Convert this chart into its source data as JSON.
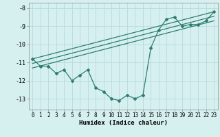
{
  "xlabel": "Humidex (Indice chaleur)",
  "bg_color": "#d6f0f0",
  "line_color": "#2e7d6e",
  "grid_color": "#b8dada",
  "xlim": [
    -0.5,
    23.5
  ],
  "ylim": [
    -13.6,
    -7.7
  ],
  "yticks": [
    -8,
    -9,
    -10,
    -11,
    -12,
    -13
  ],
  "xticks": [
    0,
    1,
    2,
    3,
    4,
    5,
    6,
    7,
    8,
    9,
    10,
    11,
    12,
    13,
    14,
    15,
    16,
    17,
    18,
    19,
    20,
    21,
    22,
    23
  ],
  "main_x": [
    0,
    1,
    2,
    3,
    4,
    5,
    6,
    7,
    8,
    9,
    10,
    11,
    12,
    13,
    14,
    15,
    16,
    17,
    18,
    19,
    20,
    21,
    22,
    23
  ],
  "main_y": [
    -10.8,
    -11.2,
    -11.2,
    -11.6,
    -11.4,
    -12.0,
    -11.7,
    -11.4,
    -12.4,
    -12.6,
    -13.0,
    -13.1,
    -12.8,
    -13.0,
    -12.8,
    -10.2,
    -9.2,
    -8.6,
    -8.5,
    -9.0,
    -8.9,
    -8.9,
    -8.7,
    -8.2
  ],
  "line1_x": [
    0,
    23
  ],
  "line1_y": [
    -10.8,
    -8.2
  ],
  "line2_x": [
    0,
    23
  ],
  "line2_y": [
    -11.05,
    -8.45
  ],
  "line3_x": [
    0,
    23
  ],
  "line3_y": [
    -11.3,
    -8.7
  ],
  "tick_fontsize": 5.5,
  "xlabel_fontsize": 6.5
}
